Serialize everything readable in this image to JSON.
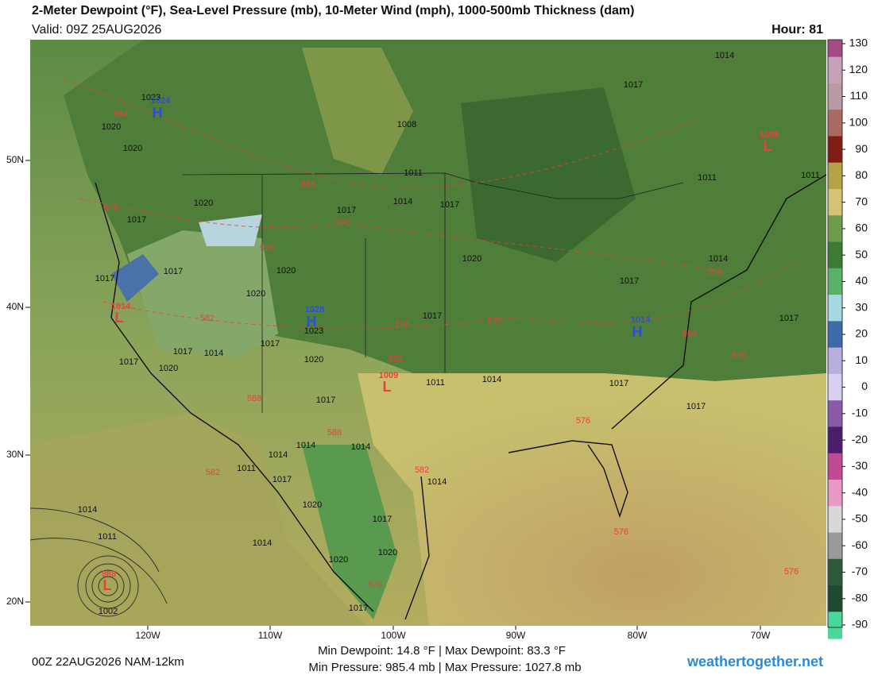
{
  "header": {
    "title": "2-Meter Dewpoint (°F), Sea-Level Pressure (mb), 10-Meter Wind (mph), 1000-500mb Thickness (dam)",
    "valid": "Valid: 09Z 25AUG2026",
    "hour": "Hour: 81"
  },
  "map": {
    "lat_labels": [
      "50N",
      "40N",
      "30N",
      "20N"
    ],
    "lon_labels": [
      "120W",
      "110W",
      "100W",
      "90W",
      "80W",
      "70W"
    ],
    "pressure_labels": [
      "1023",
      "1020",
      "1020",
      "1008",
      "1014",
      "1017",
      "1011",
      "1014",
      "1017",
      "1020",
      "1017",
      "1017",
      "1020",
      "1017",
      "1017",
      "1020",
      "1020",
      "1017",
      "1023",
      "1017",
      "1017",
      "1014",
      "1017",
      "1020",
      "1020",
      "1014",
      "1011",
      "1017",
      "1017",
      "1017",
      "1014",
      "1014",
      "1014",
      "1011",
      "1017",
      "1014",
      "1014",
      "1020",
      "1017",
      "1011",
      "1014",
      "1020",
      "1020",
      "1002",
      "1014",
      "1017",
      "1017",
      "1011",
      "1011",
      "1017"
    ],
    "thickness_labels": [
      "564",
      "564",
      "570",
      "570",
      "576",
      "582",
      "576",
      "570",
      "582",
      "588",
      "588",
      "582",
      "582",
      "576",
      "576",
      "576",
      "576",
      "570",
      "564",
      "558"
    ],
    "highs": [
      {
        "letter": "H",
        "value": "1024"
      },
      {
        "letter": "H",
        "value": "1028"
      },
      {
        "letter": "H",
        "value": "1014"
      }
    ],
    "lows": [
      {
        "letter": "L",
        "value": "1008"
      },
      {
        "letter": "L",
        "value": "1014"
      },
      {
        "letter": "L",
        "value": "1009"
      },
      {
        "letter": "L",
        "value": "988"
      }
    ]
  },
  "colorbar": {
    "ticks": [
      130,
      120,
      110,
      100,
      90,
      80,
      70,
      60,
      50,
      40,
      30,
      20,
      10,
      0,
      -10,
      -20,
      -30,
      -40,
      -50,
      -60,
      -70,
      -80,
      -90
    ],
    "colors": [
      "#a44a86",
      "#c6a2b8",
      "#b89aa6",
      "#a86a62",
      "#7e1e14",
      "#b4a446",
      "#d2c474",
      "#6e9c4a",
      "#3e7a34",
      "#5ab26a",
      "#a8d8e2",
      "#3e6aa8",
      "#b8aee0",
      "#d8d0ee",
      "#8a5aa8",
      "#4a1e6a",
      "#c04a94",
      "#e89ac4",
      "#d8d8d8",
      "#9a9a9a",
      "#2e5a3a",
      "#1e4a32",
      "#4ad89a"
    ]
  },
  "footer": {
    "model": "00Z 22AUG2026 NAM-12km",
    "dewpoint": "Min Dewpoint:  14.8 °F | Max Dewpoint:  83.3 °F",
    "pressure": "Min Pressure: 985.4 mb | Max Pressure: 1027.8 mb",
    "site": "weathertogether.net"
  }
}
